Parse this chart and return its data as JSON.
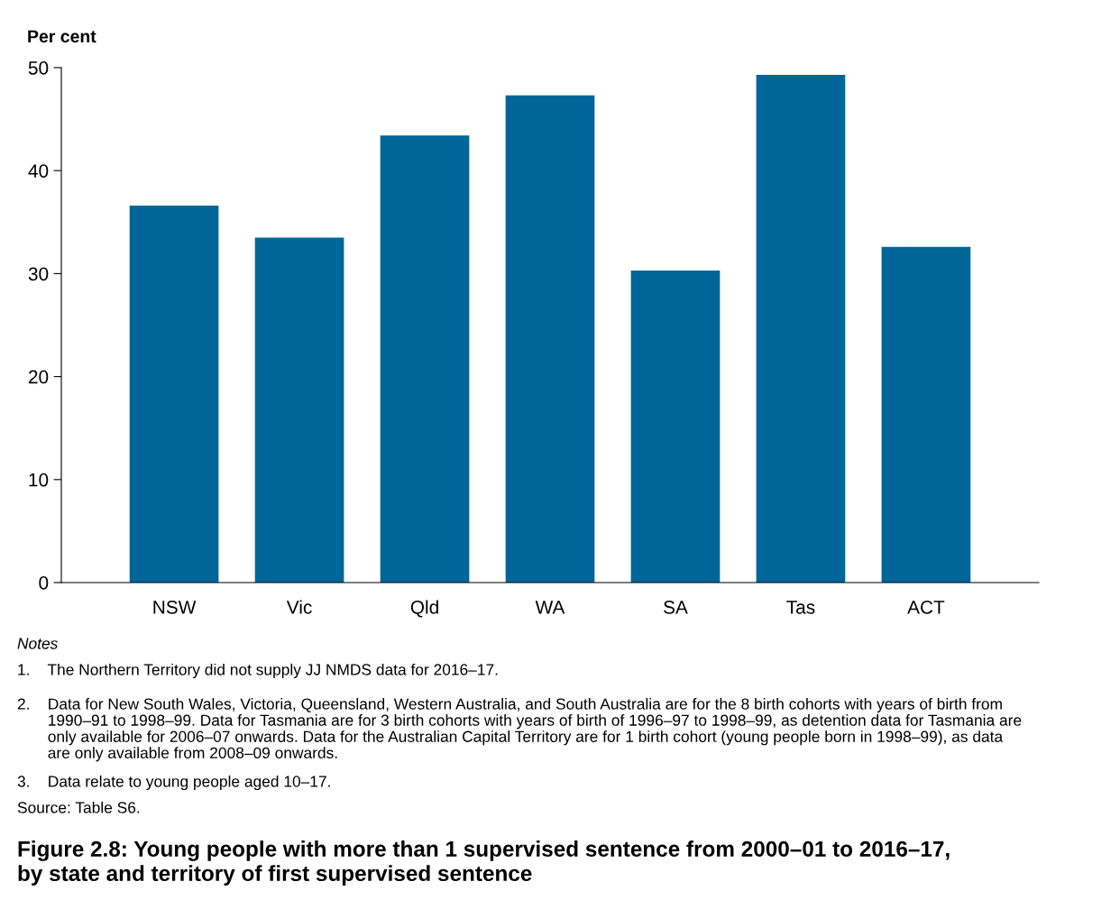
{
  "chart_data": {
    "type": "bar",
    "title": "Figure 2.8: Young people with more than 1 supervised sentence from 2000–01 to 2016–17,\nby state and territory of first supervised sentence",
    "ylabel": "Per cent",
    "categories": [
      "NSW",
      "Vic",
      "Qld",
      "WA",
      "SA",
      "Tas",
      "ACT"
    ],
    "values": [
      36.6,
      33.5,
      43.4,
      47.3,
      30.3,
      49.3,
      32.6
    ],
    "color": "#006699",
    "ylim": [
      0,
      50
    ],
    "yticks": [
      0,
      10,
      20,
      30,
      40,
      50
    ],
    "grid": false,
    "annotations": [
      "Notes",
      "1.    The Northern Territory did not supply JJ NMDS data for 2016–17.",
      "2.    Data for New South Wales, Victoria, Queensland, Western Australia, and South Australia are for the 8 birth cohorts with years of birth from\n       1990–91 to 1998–99. Data for Tasmania are for 3 birth cohorts with years of birth of 1996–97 to 1998–99, as detention data for Tasmania are\n       only available for 2006–07 onwards. Data for the Australian Capital Territory are for 1 birth cohort (young people born in 1998–99), as data\n       are only available from 2008–09 onwards.",
      "3.    Data relate to young people aged 10–17.",
      "Source: Table S6."
    ]
  }
}
